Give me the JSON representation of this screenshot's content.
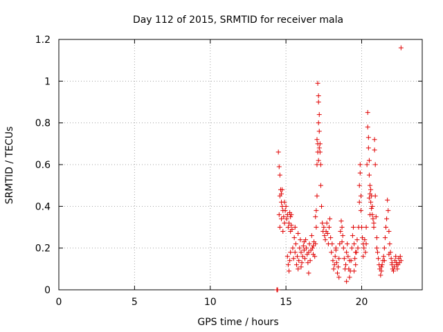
{
  "chart_data": {
    "type": "scatter",
    "title": "Day 112 of 2015, SRMTID for receiver mala",
    "xlabel": "GPS time / hours",
    "ylabel": "SRMTID / TECUs",
    "xlim": [
      0,
      24
    ],
    "ylim": [
      0,
      1.2
    ],
    "x_ticks": [
      0,
      5,
      10,
      15,
      20
    ],
    "x_tick_labels": [
      "0",
      "5",
      "10",
      "15",
      "20"
    ],
    "y_ticks": [
      0,
      0.2,
      0.4,
      0.6,
      0.8,
      1,
      1.2
    ],
    "y_tick_labels": [
      "0",
      "0.2",
      "0.4",
      "0.6",
      "0.8",
      "1",
      "1.2"
    ],
    "grid": true,
    "marker": "plus",
    "color": "#e00000",
    "series": [
      {
        "name": "SRMTID",
        "x": [
          14.4,
          14.45,
          14.5,
          14.55,
          14.55,
          14.6,
          14.6,
          14.6,
          14.65,
          14.7,
          14.7,
          14.75,
          14.8,
          14.8,
          14.85,
          14.9,
          14.9,
          14.95,
          15.0,
          15.05,
          15.1,
          15.15,
          15.2,
          15.25,
          15.3,
          15.3,
          15.35,
          15.35,
          15.4,
          15.1,
          15.15,
          15.2,
          15.25,
          15.3,
          15.45,
          15.5,
          15.55,
          15.6,
          15.65,
          15.7,
          15.75,
          15.8,
          15.85,
          15.9,
          15.95,
          16.0,
          16.05,
          16.1,
          16.15,
          16.2,
          16.25,
          16.3,
          16.35,
          16.4,
          16.45,
          16.5,
          16.55,
          16.6,
          16.65,
          16.7,
          16.75,
          16.8,
          16.85,
          16.9,
          16.95,
          16.95,
          17.0,
          17.0,
          17.05,
          17.05,
          17.1,
          17.1,
          17.15,
          17.15,
          17.15,
          17.2,
          17.2,
          17.2,
          17.25,
          17.25,
          17.3,
          17.3,
          17.35,
          17.4,
          17.45,
          17.5,
          17.55,
          17.6,
          17.65,
          17.7,
          17.75,
          17.8,
          17.85,
          17.9,
          17.95,
          18.0,
          18.05,
          18.1,
          18.15,
          18.2,
          18.25,
          18.3,
          18.35,
          18.4,
          18.45,
          18.5,
          18.55,
          18.6,
          18.65,
          18.7,
          18.75,
          18.8,
          18.85,
          18.9,
          18.95,
          19.0,
          19.05,
          19.1,
          19.15,
          19.2,
          19.25,
          19.3,
          19.35,
          19.4,
          19.45,
          19.5,
          19.55,
          19.6,
          19.65,
          19.7,
          19.75,
          19.8,
          19.85,
          19.85,
          19.9,
          19.9,
          19.95,
          19.95,
          20.0,
          20.05,
          20.1,
          20.15,
          20.2,
          20.25,
          20.3,
          20.3,
          20.35,
          20.4,
          20.4,
          20.45,
          20.45,
          20.5,
          20.5,
          20.55,
          20.55,
          20.6,
          20.6,
          20.65,
          20.65,
          20.7,
          20.7,
          20.75,
          20.8,
          20.8,
          20.85,
          20.85,
          20.9,
          20.9,
          20.95,
          21.0,
          21.05,
          21.1,
          21.15,
          21.2,
          21.25,
          21.3,
          21.35,
          21.4,
          21.45,
          21.5,
          21.55,
          21.6,
          21.65,
          21.7,
          21.75,
          21.8,
          21.85,
          21.9,
          21.95,
          22.0,
          22.05,
          22.1,
          22.15,
          22.2,
          22.25,
          22.3,
          22.35,
          22.4,
          22.45,
          22.5,
          22.55,
          22.6,
          22.6,
          17.05,
          17.1,
          17.15,
          20.5,
          20.55,
          14.7,
          14.75,
          18.5,
          19.0,
          19.5,
          16.0,
          16.5,
          21.0,
          21.5,
          22.0,
          15.6,
          15.8,
          16.2,
          16.8,
          18.3,
          18.7,
          19.2,
          19.6,
          20.1,
          21.3,
          21.8,
          22.3
        ],
        "y": [
          0.0,
          0.0,
          0.66,
          0.59,
          0.36,
          0.55,
          0.45,
          0.3,
          0.48,
          0.46,
          0.34,
          0.4,
          0.38,
          0.28,
          0.35,
          0.42,
          0.32,
          0.38,
          0.4,
          0.34,
          0.36,
          0.3,
          0.32,
          0.37,
          0.35,
          0.28,
          0.36,
          0.31,
          0.29,
          0.16,
          0.12,
          0.09,
          0.14,
          0.18,
          0.2,
          0.15,
          0.25,
          0.18,
          0.22,
          0.12,
          0.16,
          0.1,
          0.14,
          0.2,
          0.24,
          0.18,
          0.13,
          0.16,
          0.21,
          0.19,
          0.15,
          0.24,
          0.2,
          0.17,
          0.13,
          0.18,
          0.22,
          0.14,
          0.19,
          0.26,
          0.2,
          0.17,
          0.23,
          0.16,
          0.22,
          0.35,
          0.3,
          0.38,
          0.45,
          0.6,
          0.7,
          0.99,
          0.93,
          0.9,
          0.8,
          0.84,
          0.76,
          0.68,
          0.66,
          0.7,
          0.6,
          0.5,
          0.4,
          0.32,
          0.28,
          0.3,
          0.26,
          0.24,
          0.28,
          0.32,
          0.27,
          0.22,
          0.3,
          0.34,
          0.25,
          0.18,
          0.22,
          0.14,
          0.1,
          0.12,
          0.16,
          0.2,
          0.13,
          0.08,
          0.11,
          0.15,
          0.22,
          0.28,
          0.33,
          0.3,
          0.26,
          0.2,
          0.15,
          0.1,
          0.12,
          0.18,
          0.22,
          0.16,
          0.1,
          0.06,
          0.09,
          0.14,
          0.2,
          0.26,
          0.3,
          0.22,
          0.15,
          0.12,
          0.18,
          0.24,
          0.2,
          0.3,
          0.42,
          0.5,
          0.56,
          0.6,
          0.45,
          0.38,
          0.3,
          0.25,
          0.22,
          0.2,
          0.24,
          0.18,
          0.22,
          0.3,
          0.6,
          0.85,
          0.78,
          0.73,
          0.68,
          0.62,
          0.55,
          0.5,
          0.46,
          0.48,
          0.42,
          0.45,
          0.39,
          0.4,
          0.36,
          0.34,
          0.32,
          0.3,
          0.67,
          0.72,
          0.6,
          0.45,
          0.35,
          0.25,
          0.18,
          0.15,
          0.12,
          0.1,
          0.07,
          0.09,
          0.12,
          0.14,
          0.16,
          0.2,
          0.25,
          0.3,
          0.34,
          0.43,
          0.38,
          0.28,
          0.22,
          0.18,
          0.15,
          0.12,
          0.1,
          0.09,
          0.11,
          0.14,
          0.16,
          0.13,
          0.1,
          0.12,
          0.15,
          0.13,
          0.16,
          0.14,
          1.16,
          0.72,
          0.66,
          0.62,
          0.44,
          0.36,
          0.42,
          0.48,
          0.06,
          0.04,
          0.09,
          0.11,
          0.08,
          0.2,
          0.14,
          0.13,
          0.3,
          0.27,
          0.23,
          0.21,
          0.19,
          0.23,
          0.14,
          0.18,
          0.16,
          0.11,
          0.17,
          0.12
        ]
      }
    ]
  }
}
